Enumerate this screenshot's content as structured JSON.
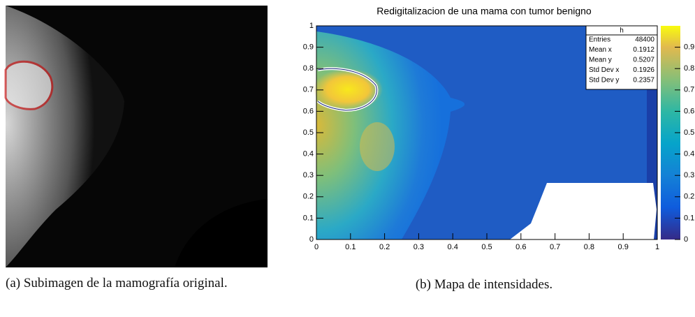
{
  "figures": [
    {
      "caption_label": "(a)",
      "caption": "Subimagen de la mamografía original."
    },
    {
      "caption_label": "(b)",
      "caption": "Mapa de intensidades.",
      "chart": {
        "title": "Redigitalizacion de una mama con tumor benigno",
        "xlim": [
          0,
          1
        ],
        "ylim": [
          0,
          1
        ],
        "zlim": [
          0,
          1
        ],
        "xticks": [
          0,
          0.1,
          0.2,
          0.3,
          0.4,
          0.5,
          0.6,
          0.7,
          0.8,
          0.9,
          1
        ],
        "yticks": [
          0,
          0.1,
          0.2,
          0.3,
          0.4,
          0.5,
          0.6,
          0.7,
          0.8,
          0.9,
          1
        ],
        "zticks": [
          0,
          0.1,
          0.2,
          0.3,
          0.4,
          0.5,
          0.6,
          0.7,
          0.8,
          0.9
        ],
        "stats": {
          "name": "h",
          "rows": [
            {
              "label": "Entries",
              "value": 48400
            },
            {
              "label": "Mean x",
              "value": 0.1912
            },
            {
              "label": "Mean y",
              "value": 0.5207
            },
            {
              "label": "Std Dev x",
              "value": 0.1926
            },
            {
              "label": "Std Dev y",
              "value": 0.2357
            }
          ]
        }
      }
    }
  ]
}
